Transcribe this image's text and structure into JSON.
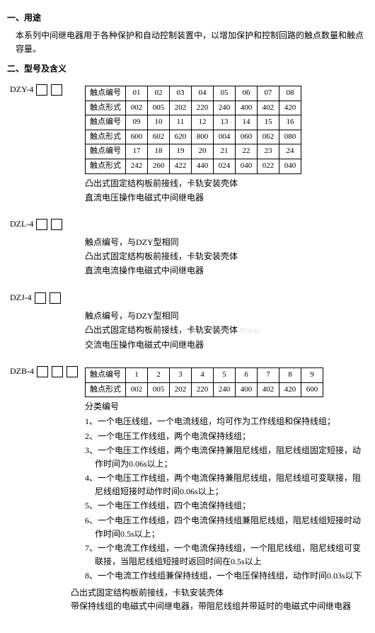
{
  "section1_title": "一、用途",
  "section1_para": "本系列中间继电器用于各种保护和自动控制装置中，以增加保护和控制回路的触点数量和触点容量。",
  "section2_title": "二、型号及含义",
  "block1": {
    "label": "DZY-4",
    "tbl_hdr1": "触点编号",
    "r1": [
      "01",
      "02",
      "03",
      "04",
      "05",
      "06",
      "07",
      "08"
    ],
    "tbl_hdr2": "触点形式",
    "r2": [
      "002",
      "005",
      "202",
      "220",
      "240",
      "400",
      "402",
      "420"
    ],
    "tbl_hdr3": "触点编号",
    "r3": [
      "09",
      "10",
      "11",
      "12",
      "13",
      "14",
      "15",
      "16"
    ],
    "tbl_hdr4": "触点形式",
    "r4": [
      "600",
      "602",
      "620",
      "800",
      "004",
      "060",
      "062",
      "080"
    ],
    "tbl_hdr5": "触点编号",
    "r5": [
      "17",
      "18",
      "19",
      "20",
      "21",
      "22",
      "23",
      "24"
    ],
    "tbl_hdr6": "触点形式",
    "r6": [
      "242",
      "260",
      "422",
      "440",
      "024",
      "040",
      "022",
      "040"
    ],
    "d1": "凸出式固定结构板前接线，卡轨安装壳体",
    "d2": "直流电压操作电磁式中间继电器"
  },
  "block2": {
    "label": "DZL-4",
    "d1": "触点编号，与DZY型相同",
    "d2": "凸出式固定结构板前接线，卡轨安装壳体",
    "d3": "直流电流操作电磁式中间继电器"
  },
  "block3": {
    "label": "DZJ-4",
    "d1": "触点编号，与DZY型相同",
    "d2": "凸出式固定结构板前接线，卡轨安装壳体",
    "d3": "交流电压操作电磁式中间继电器",
    "wm": "91way"
  },
  "block4": {
    "label": "DZB-4",
    "tbl_hdr1": "触点编号",
    "r1": [
      "1",
      "2",
      "3",
      "4",
      "5",
      "6",
      "7",
      "8",
      "9"
    ],
    "tbl_hdr2": "触点形式",
    "r2": [
      "002",
      "005",
      "202",
      "220",
      "240",
      "400",
      "402",
      "420",
      "600"
    ],
    "cat_title": "分类编号",
    "n1": "1、一个电压线组，一个电流线组，均可作为工作线组和保持线组；",
    "n2": "2、一个电压工作线组，两个电流保持线组；",
    "n3": "3、一个电压工作线组，两个电流保持兼阻尼线组，阻尼线组固定短接，动作时间为0.06s以上；",
    "n4": "4、一个电压工作线组，两个电流保持兼阻尼线组，阻尼线组可变联接，阻尼线组短接时动作时间0.06s以上；",
    "n5": "5、一个电压工作线组，四个电流保持线组；",
    "n6": "6、一个电压工作线组，四个电流保持线组兼阻尼线组，阻尼线组短接时动作时间0.5s以上；",
    "n7": "7、一个电流工作线组，一个电流保持线组，一个阻尼线组，阻尼线组可变联接，当阻尼线组短接时返回时间在0.5s以上",
    "n8": "8、一个电流工作线组兼保持线组，一个电压保持线组，动作时间0.03s以下",
    "d1": "凸出式固定结构板前接线，卡轨安装壳体",
    "d2": "带保持线组的电磁式中间继电器，带阻尼线组并带延时的电磁式中间继电器"
  }
}
